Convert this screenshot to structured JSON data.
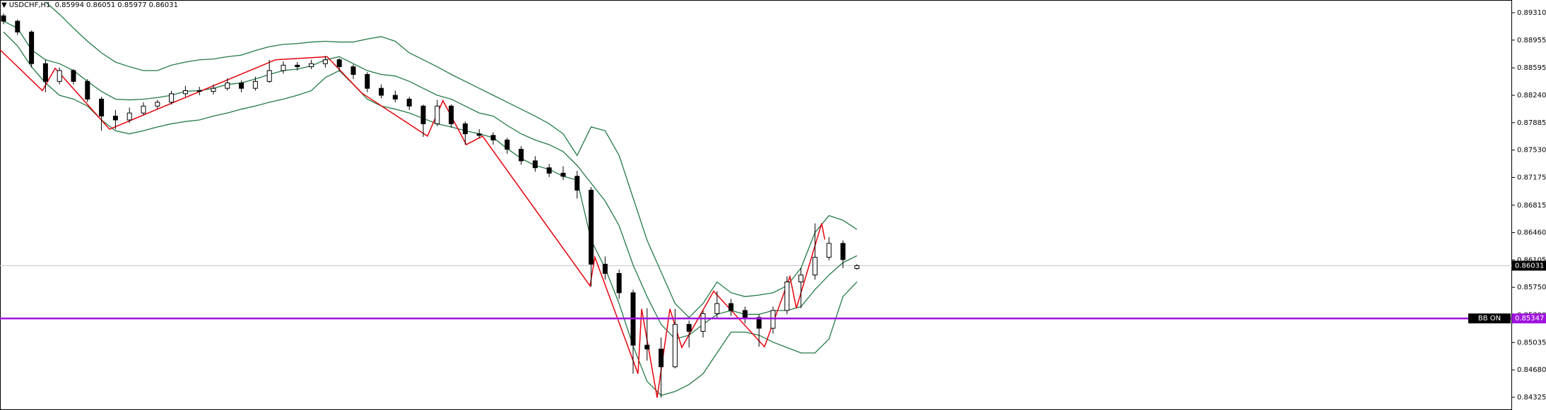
{
  "chart_data": {
    "type": "candlestick",
    "symbol": "USDCHF,H1",
    "ylim": [
      0.8416,
      0.89475
    ],
    "yticks": [
      {
        "value": 0.8931,
        "label": "0.89310"
      },
      0.88955,
      0.88595,
      {
        "value": 0.8824,
        "label": "0.88240"
      },
      0.87885,
      {
        "value": 0.8753,
        "label": "0.87530"
      },
      0.87175,
      0.86815,
      {
        "value": 0.8646,
        "label": "0.86460"
      },
      0.86105,
      {
        "value": 0.8575,
        "label": "0.85750"
      },
      {
        "value": 0.8539,
        "label": "0.85390"
      },
      0.85035,
      {
        "value": 0.8468,
        "label": "0.84680"
      },
      0.84325
    ],
    "candles": [
      [
        0.8927,
        0.893,
        0.8916,
        0.892
      ],
      [
        0.892,
        0.8922,
        0.8902,
        0.8906
      ],
      [
        0.8906,
        0.8908,
        0.886,
        0.8865
      ],
      [
        0.8865,
        0.887,
        0.8828,
        0.8842
      ],
      [
        0.8842,
        0.886,
        0.8838,
        0.8856
      ],
      [
        0.8856,
        0.8858,
        0.8838,
        0.8842
      ],
      [
        0.8842,
        0.8845,
        0.8815,
        0.8819
      ],
      [
        0.8819,
        0.8822,
        0.8778,
        0.8797
      ],
      [
        0.8797,
        0.8805,
        0.878,
        0.8792
      ],
      [
        0.8792,
        0.8808,
        0.8788,
        0.8801
      ],
      [
        0.8801,
        0.8815,
        0.8798,
        0.881
      ],
      [
        0.881,
        0.8818,
        0.8806,
        0.8815
      ],
      [
        0.8815,
        0.883,
        0.8812,
        0.8826
      ],
      [
        0.8826,
        0.8836,
        0.8822,
        0.883
      ],
      [
        0.883,
        0.8835,
        0.8824,
        0.8829
      ],
      [
        0.8829,
        0.8838,
        0.8825,
        0.8833
      ],
      [
        0.8833,
        0.8846,
        0.883,
        0.884
      ],
      [
        0.884,
        0.8843,
        0.8828,
        0.8833
      ],
      [
        0.8833,
        0.8848,
        0.883,
        0.8842
      ],
      [
        0.8842,
        0.887,
        0.884,
        0.8856
      ],
      [
        0.8856,
        0.8868,
        0.8852,
        0.8863
      ],
      [
        0.8863,
        0.8867,
        0.8856,
        0.8861
      ],
      [
        0.8861,
        0.887,
        0.8858,
        0.8865
      ],
      [
        0.8865,
        0.8875,
        0.886,
        0.887
      ],
      [
        0.887,
        0.8872,
        0.8855,
        0.8861
      ],
      [
        0.8861,
        0.8864,
        0.8845,
        0.8851
      ],
      [
        0.8851,
        0.8854,
        0.8828,
        0.8833
      ],
      [
        0.8833,
        0.8838,
        0.882,
        0.8824
      ],
      [
        0.8824,
        0.883,
        0.8815,
        0.8819
      ],
      [
        0.8819,
        0.8822,
        0.8805,
        0.881
      ],
      [
        0.881,
        0.8812,
        0.877,
        0.8787
      ],
      [
        0.8787,
        0.8818,
        0.8784,
        0.881
      ],
      [
        0.881,
        0.8812,
        0.8782,
        0.8787
      ],
      [
        0.8787,
        0.879,
        0.876,
        0.8774
      ],
      [
        0.8774,
        0.878,
        0.8768,
        0.8772
      ],
      [
        0.8772,
        0.8776,
        0.876,
        0.8766
      ],
      [
        0.8766,
        0.8769,
        0.8748,
        0.8754
      ],
      [
        0.8754,
        0.8758,
        0.8734,
        0.8739
      ],
      [
        0.8739,
        0.8745,
        0.8725,
        0.873
      ],
      [
        0.873,
        0.8735,
        0.8718,
        0.8723
      ],
      [
        0.8723,
        0.8732,
        0.8714,
        0.8719
      ],
      [
        0.8719,
        0.8726,
        0.869,
        0.8701
      ],
      [
        0.8701,
        0.8705,
        0.8576,
        0.8605
      ],
      [
        0.8605,
        0.8615,
        0.8585,
        0.8593
      ],
      [
        0.8593,
        0.8598,
        0.856,
        0.8568
      ],
      [
        0.8568,
        0.8572,
        0.8463,
        0.85
      ],
      [
        0.85,
        0.8548,
        0.848,
        0.8495
      ],
      [
        0.8495,
        0.851,
        0.8432,
        0.8472
      ],
      [
        0.8472,
        0.8547,
        0.847,
        0.8527
      ],
      [
        0.8527,
        0.8532,
        0.8497,
        0.8518
      ],
      [
        0.8518,
        0.8545,
        0.851,
        0.8541
      ],
      [
        0.8541,
        0.857,
        0.8535,
        0.8554
      ],
      [
        0.8554,
        0.856,
        0.8538,
        0.8545
      ],
      [
        0.8545,
        0.855,
        0.8528,
        0.8536
      ],
      [
        0.8536,
        0.854,
        0.8498,
        0.8522
      ],
      [
        0.8522,
        0.855,
        0.8515,
        0.8545
      ],
      [
        0.8545,
        0.8589,
        0.854,
        0.8582
      ],
      [
        0.8582,
        0.86,
        0.8548,
        0.8591
      ],
      [
        0.8591,
        0.8658,
        0.8585,
        0.8614
      ],
      [
        0.8614,
        0.864,
        0.861,
        0.8632
      ],
      [
        0.8632,
        0.8636,
        0.86,
        0.8611
      ],
      [
        0.85994,
        0.86051,
        0.85977,
        0.86031
      ]
    ],
    "candle_colors": {
      "up": "#ffffff",
      "down": "#000000",
      "outline": "#000000"
    },
    "bands": [
      {
        "color": "#237a45",
        "values": [
          null,
          null,
          null,
          0.8945,
          0.8929,
          0.8911,
          0.8894,
          0.8879,
          0.8867,
          0.8861,
          0.8856,
          0.8856,
          0.8863,
          0.8867,
          0.887,
          0.8871,
          0.8874,
          0.8876,
          0.8882,
          0.8887,
          0.889,
          0.8891,
          0.8893,
          0.8894,
          0.8893,
          0.8893,
          0.8897,
          0.89,
          0.8894,
          0.8879,
          0.887,
          0.8861,
          0.8851,
          0.8842,
          0.8833,
          0.8824,
          0.8815,
          0.8806,
          0.8797,
          0.8787,
          0.8774,
          0.8746,
          0.8783,
          0.8778,
          0.8746,
          0.8691,
          0.8636,
          0.8595,
          0.8554,
          0.8536,
          0.8554,
          0.8582,
          0.8568,
          0.8563,
          0.8565,
          0.8568,
          0.8577,
          0.86,
          0.8646,
          0.8668,
          0.8662,
          0.865
        ]
      },
      {
        "color": "#237a45",
        "values": [
          0.892,
          0.8911,
          0.8883,
          0.887,
          0.8865,
          0.8856,
          0.8842,
          0.8829,
          0.8819,
          0.8818,
          0.8819,
          0.8821,
          0.8824,
          0.8829,
          0.883,
          0.8833,
          0.8838,
          0.884,
          0.8845,
          0.8851,
          0.8856,
          0.8858,
          0.8862,
          0.887,
          0.8874,
          0.8865,
          0.8856,
          0.8851,
          0.8849,
          0.8842,
          0.8833,
          0.8824,
          0.8819,
          0.881,
          0.8801,
          0.8797,
          0.8785,
          0.8774,
          0.8766,
          0.876,
          0.8751,
          0.8733,
          0.871,
          0.8687,
          0.8655,
          0.8604,
          0.8563,
          0.8527,
          0.8508,
          0.8513,
          0.8527,
          0.854,
          0.8545,
          0.854,
          0.854,
          0.8545,
          0.8545,
          0.855,
          0.8572,
          0.8591,
          0.8607,
          0.8616
        ]
      },
      {
        "color": "#237a45",
        "values": [
          0.8906,
          0.8888,
          0.8861,
          0.884,
          0.8824,
          0.8819,
          0.881,
          0.8792,
          0.8778,
          0.8774,
          0.8778,
          0.8783,
          0.8787,
          0.879,
          0.8792,
          0.8797,
          0.8801,
          0.8806,
          0.881,
          0.8815,
          0.8819,
          0.8824,
          0.883,
          0.8847,
          0.8856,
          0.8838,
          0.8819,
          0.881,
          0.8806,
          0.8801,
          0.8794,
          0.8787,
          0.8783,
          0.8778,
          0.8774,
          0.8769,
          0.8755,
          0.8742,
          0.8733,
          0.8728,
          0.8719,
          0.8714,
          0.8636,
          0.86,
          0.8554,
          0.8499,
          0.8453,
          0.8435,
          0.844,
          0.8449,
          0.8463,
          0.849,
          0.8517,
          0.8517,
          0.8513,
          0.8504,
          0.8497,
          0.849,
          0.849,
          0.8508,
          0.8563,
          0.8582
        ]
      }
    ],
    "zigzag": {
      "color": "#e8000b",
      "x": [
        -0.25,
        2.78,
        3.69,
        7.58,
        19.44,
        23.13,
        25.6,
        30.3,
        31.41,
        33.08,
        34.24,
        41.92,
        42.27,
        45.35,
        45.61,
        46.72,
        47.63,
        48.48,
        50.76,
        54.39,
        56.21,
        56.67,
        58.48,
        58.7
      ],
      "values": [
        0.8883,
        0.883,
        0.8859,
        0.878,
        0.887,
        0.8874,
        0.8827,
        0.8771,
        0.8817,
        0.876,
        0.8771,
        0.8577,
        0.8614,
        0.8463,
        0.8547,
        0.8432,
        0.8547,
        0.8497,
        0.857,
        0.8498,
        0.8589,
        0.8548,
        0.8658,
        0.8637
      ]
    },
    "level": {
      "label": "BB ON",
      "value": 0.85347,
      "color": "#a012e0"
    },
    "price_line_color": "#c8c8c8"
  }
}
